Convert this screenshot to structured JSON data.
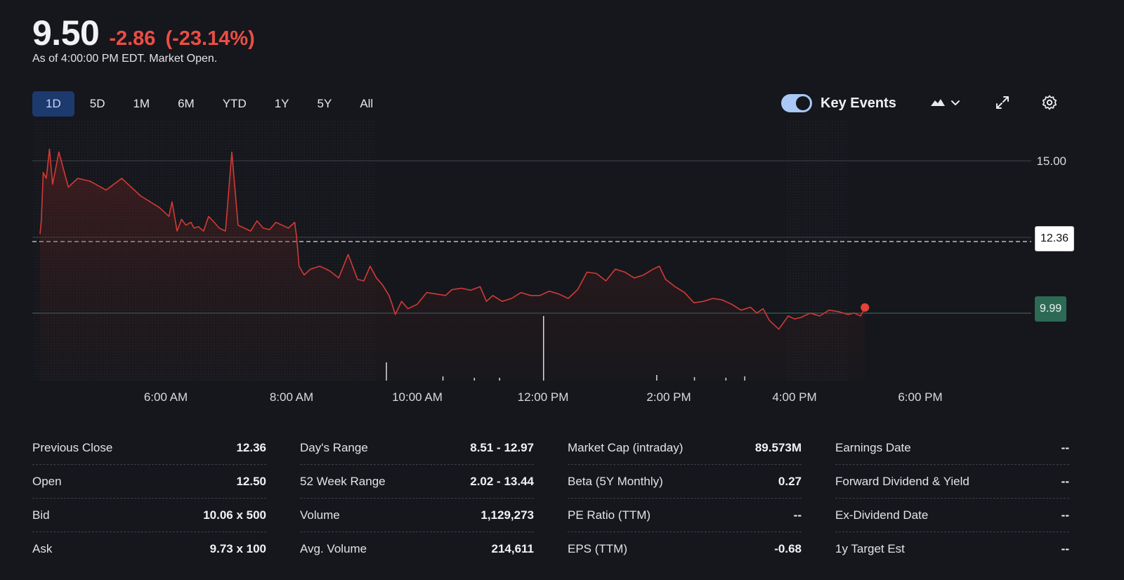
{
  "quote": {
    "price": "9.50",
    "change": "-2.86",
    "change_pct": "(-23.14%)",
    "as_of": "As of 4:00:00 PM EDT. Market Open."
  },
  "toolbar": {
    "ranges": [
      "1D",
      "5D",
      "1M",
      "6M",
      "YTD",
      "1Y",
      "5Y",
      "All"
    ],
    "active_range": "1D",
    "key_events_label": "Key Events",
    "key_events_on": true,
    "icons": [
      "mountain-chart-icon",
      "chevron-down-icon",
      "expand-icon",
      "gear-icon"
    ]
  },
  "chart_data": {
    "type": "line",
    "y_axis_labels": [
      "15.00"
    ],
    "previous_close_label": "12.36",
    "current_price_label": "9.99",
    "x_ticks": [
      "6:00 AM",
      "8:00 AM",
      "10:00 AM",
      "12:00 PM",
      "2:00 PM",
      "4:00 PM",
      "6:00 PM"
    ],
    "x_tick_hours": [
      6,
      8,
      10,
      12,
      14,
      16,
      18
    ],
    "series_hours": [
      4.0,
      4.02,
      4.05,
      4.1,
      4.15,
      4.2,
      4.3,
      4.45,
      4.6,
      4.8,
      5.05,
      5.3,
      5.6,
      5.9,
      6.05,
      6.1,
      6.18,
      6.25,
      6.32,
      6.4,
      6.45,
      6.52,
      6.6,
      6.68,
      6.75,
      6.85,
      6.95,
      7.05,
      7.15,
      7.25,
      7.35,
      7.45,
      7.55,
      7.65,
      7.75,
      7.85,
      7.95,
      8.05,
      8.08,
      8.12,
      8.2,
      8.3,
      8.45,
      8.6,
      8.75,
      8.9,
      9.05,
      9.15,
      9.25,
      9.35,
      9.45,
      9.55,
      9.6,
      9.65,
      9.75,
      9.85,
      10.0,
      10.15,
      10.3,
      10.45,
      10.55,
      10.7,
      10.85,
      11.0,
      11.1,
      11.2,
      11.35,
      11.5,
      11.65,
      11.8,
      11.95,
      12.1,
      12.25,
      12.4,
      12.55,
      12.7,
      12.85,
      13.0,
      13.15,
      13.3,
      13.45,
      13.6,
      13.75,
      13.85,
      13.95,
      14.1,
      14.25,
      14.4,
      14.55,
      14.7,
      14.85,
      15.0,
      15.15,
      15.3,
      15.4,
      15.5,
      15.6,
      15.75,
      15.9,
      16.0,
      16.1,
      16.25,
      16.4,
      16.55,
      16.7,
      16.85,
      16.95,
      17.05,
      17.12
    ],
    "series_values": [
      12.5,
      12.95,
      14.6,
      14.4,
      15.4,
      14.2,
      15.3,
      14.1,
      14.4,
      14.3,
      14.0,
      14.4,
      13.8,
      13.4,
      13.1,
      13.6,
      12.6,
      13.0,
      12.8,
      12.9,
      12.7,
      12.75,
      12.6,
      13.1,
      12.95,
      12.7,
      12.6,
      15.3,
      12.8,
      12.7,
      12.6,
      12.95,
      12.7,
      12.65,
      12.9,
      12.8,
      12.7,
      12.9,
      12.4,
      11.4,
      11.1,
      11.3,
      11.4,
      11.25,
      11.0,
      11.8,
      10.95,
      10.9,
      11.4,
      11.0,
      10.75,
      10.4,
      10.1,
      9.75,
      10.2,
      9.95,
      10.1,
      10.5,
      10.45,
      10.4,
      10.6,
      10.65,
      10.58,
      10.7,
      10.2,
      10.4,
      10.2,
      10.3,
      10.5,
      10.4,
      10.4,
      10.55,
      10.45,
      10.3,
      10.6,
      11.2,
      11.15,
      10.9,
      11.3,
      11.2,
      11.0,
      11.1,
      11.3,
      11.4,
      10.95,
      10.7,
      10.5,
      10.15,
      10.2,
      10.3,
      10.25,
      10.1,
      9.9,
      10.0,
      9.8,
      9.95,
      9.55,
      9.25,
      9.7,
      9.6,
      9.65,
      9.8,
      9.7,
      9.9,
      9.85,
      9.75,
      9.8,
      9.7,
      9.99
    ]
  },
  "stats": [
    [
      {
        "label": "Previous Close",
        "value": "12.36"
      },
      {
        "label": "Open",
        "value": "12.50"
      },
      {
        "label": "Bid",
        "value": "10.06 x 500"
      },
      {
        "label": "Ask",
        "value": "9.73 x 100"
      }
    ],
    [
      {
        "label": "Day's Range",
        "value": "8.51 - 12.97"
      },
      {
        "label": "52 Week Range",
        "value": "2.02 - 13.44"
      },
      {
        "label": "Volume",
        "value": "1,129,273"
      },
      {
        "label": "Avg. Volume",
        "value": "214,611"
      }
    ],
    [
      {
        "label": "Market Cap (intraday)",
        "value": "89.573M"
      },
      {
        "label": "Beta (5Y Monthly)",
        "value": "0.27"
      },
      {
        "label": "PE Ratio (TTM)",
        "value": "--"
      },
      {
        "label": "EPS (TTM)",
        "value": "-0.68"
      }
    ],
    [
      {
        "label": "Earnings Date",
        "value": "--"
      },
      {
        "label": "Forward Dividend & Yield",
        "value": "--"
      },
      {
        "label": "Ex-Dividend Date",
        "value": "--"
      },
      {
        "label": "1y Target Est",
        "value": "--"
      }
    ]
  ],
  "colors": {
    "negative": "#eb4d45",
    "line": "#d13a36",
    "accent_tab": "#1d3a6f",
    "toggle": "#a9c8f6",
    "current_tag": "#2d6a55"
  }
}
